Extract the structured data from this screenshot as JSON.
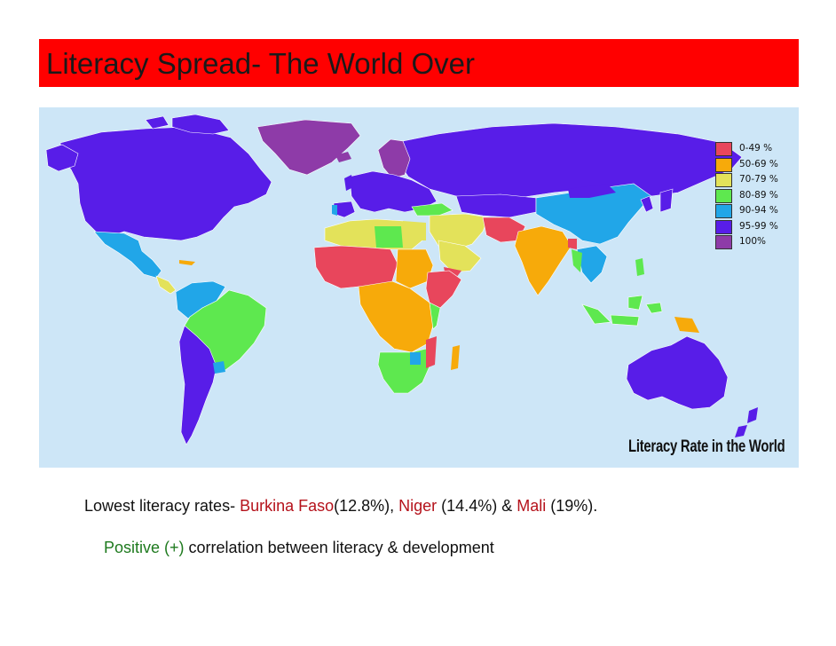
{
  "slide": {
    "title": "Literacy Spread- The World Over"
  },
  "map": {
    "caption": "Literacy Rate in the World",
    "legend": [
      {
        "label": "0-49 %",
        "color": "#e8465c"
      },
      {
        "label": "50-69 %",
        "color": "#f7aa0a"
      },
      {
        "label": "70-79 %",
        "color": "#e3e25a"
      },
      {
        "label": "80-89 %",
        "color": "#5ee84f"
      },
      {
        "label": "90-94 %",
        "color": "#21a6e8"
      },
      {
        "label": "95-99 %",
        "color": "#581de8"
      },
      {
        "label": "100%",
        "color": "#8e3ba8"
      }
    ],
    "ocean_color": "#cde6f7"
  },
  "notes": {
    "line1": {
      "prefix": "Lowest literacy rates- ",
      "country1": "Burkina Faso",
      "value1": "(12.8%), ",
      "country2": "Niger",
      "value2": " (14.4%) & ",
      "country3": "Mali",
      "value3": " (19%)."
    },
    "line2": {
      "highlight": "Positive (+)",
      "rest": " correlation between literacy & development"
    }
  }
}
